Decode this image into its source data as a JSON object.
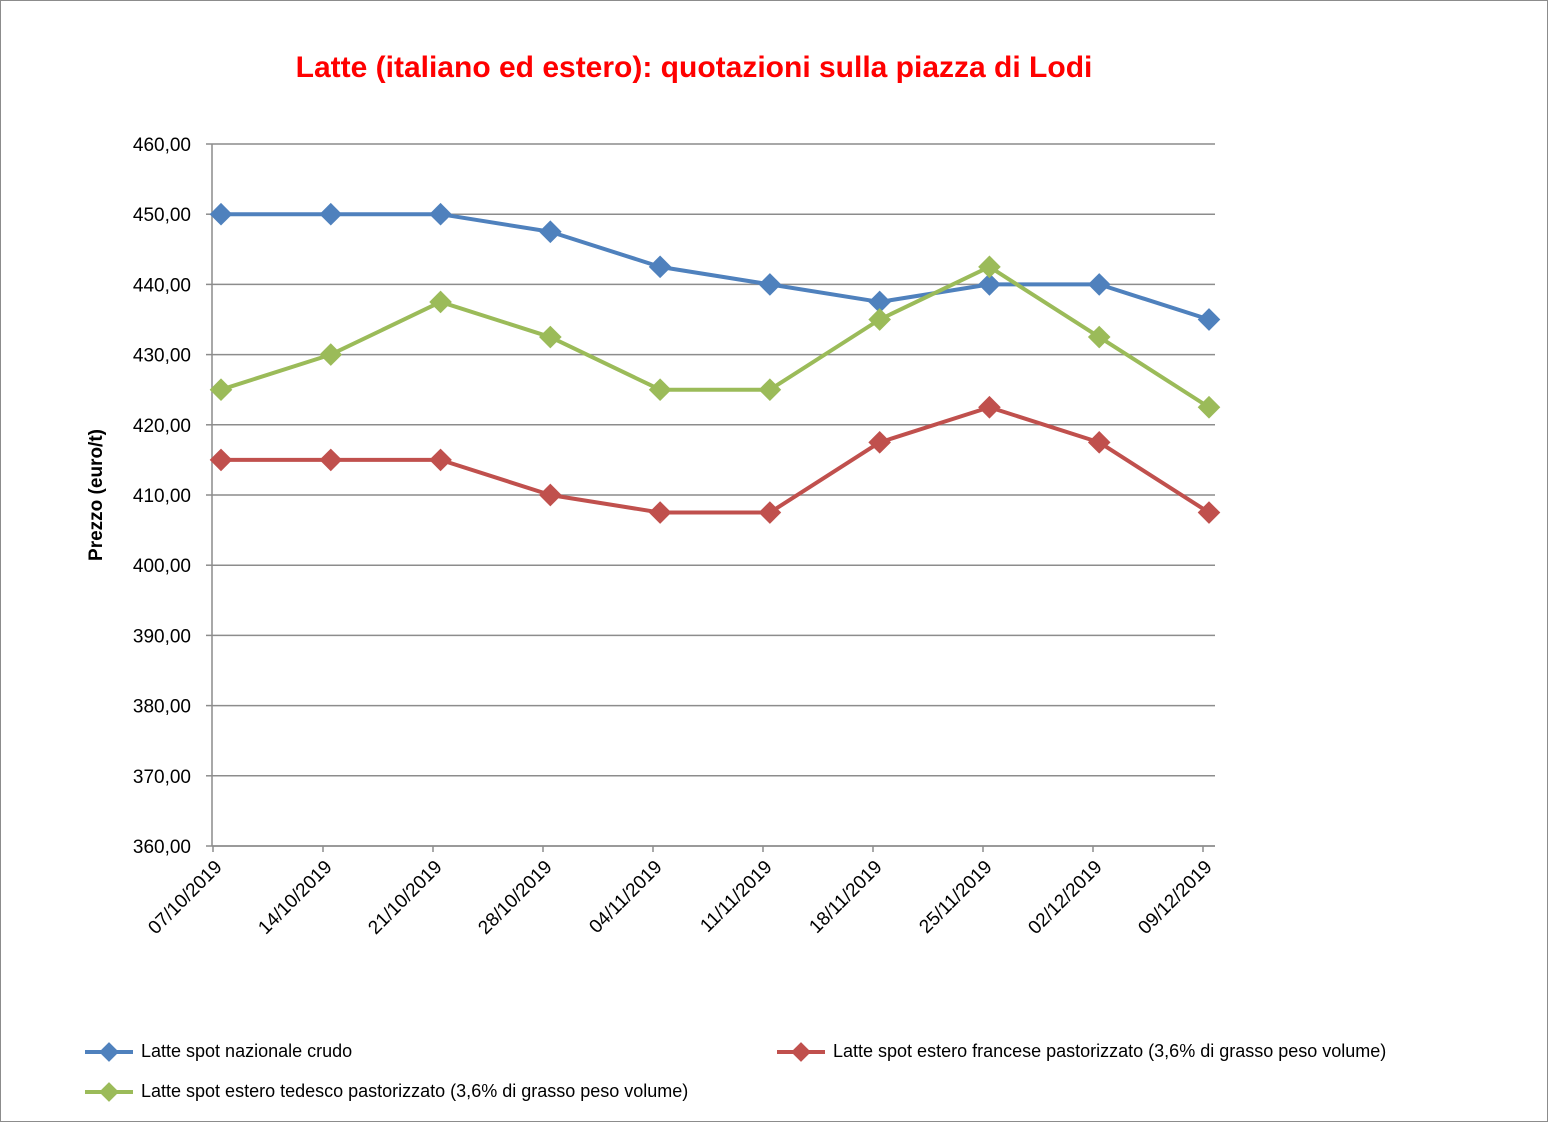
{
  "chart_data": {
    "type": "line",
    "title": "Latte (italiano ed estero): quotazioni sulla piazza di Lodi",
    "xlabel": "",
    "ylabel": "Prezzo (euro/t)",
    "ylim": [
      360,
      460
    ],
    "ytick_step": 10,
    "y_ticks": [
      "360,00",
      "370,00",
      "380,00",
      "390,00",
      "400,00",
      "410,00",
      "420,00",
      "430,00",
      "440,00",
      "450,00",
      "460,00"
    ],
    "grid": true,
    "legend_position": "bottom",
    "categories": [
      "07/10/2019",
      "14/10/2019",
      "21/10/2019",
      "28/10/2019",
      "04/11/2019",
      "11/11/2019",
      "18/11/2019",
      "25/11/2019",
      "02/12/2019",
      "09/12/2019"
    ],
    "series": [
      {
        "name": "Latte spot nazionale crudo",
        "color": "#4f81bd",
        "values": [
          450,
          450,
          450,
          447.5,
          442.5,
          440,
          437.5,
          440,
          440,
          435
        ]
      },
      {
        "name": "Latte spot estero francese pastorizzato (3,6% di grasso peso volume)",
        "color": "#c0504d",
        "values": [
          415,
          415,
          415,
          410,
          407.5,
          407.5,
          417.5,
          422.5,
          417.5,
          407.5
        ]
      },
      {
        "name": "Latte spot estero tedesco pastorizzato (3,6% di grasso peso volume)",
        "color": "#9bbb59",
        "values": [
          425,
          430,
          437.5,
          432.5,
          425,
          425,
          435,
          442.5,
          432.5,
          422.5
        ]
      }
    ]
  }
}
